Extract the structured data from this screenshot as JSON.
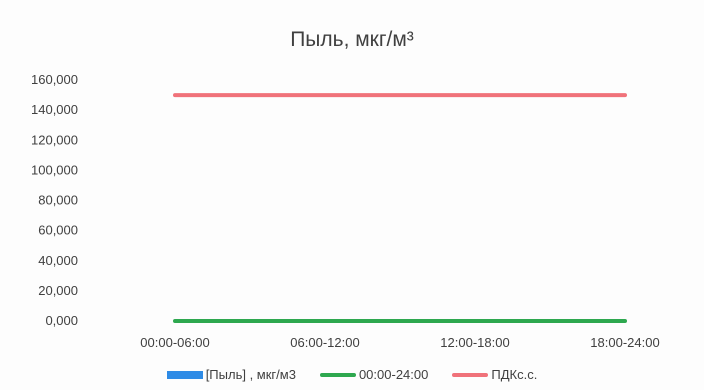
{
  "chart_data": {
    "type": "line",
    "title": "Пыль, мкг/м³",
    "categories": [
      "00:00-06:00",
      "06:00-12:00",
      "12:00-18:00",
      "18:00-24:00"
    ],
    "ylim": [
      0,
      160000
    ],
    "yticks": [
      0,
      20000,
      40000,
      60000,
      80000,
      100000,
      120000,
      140000,
      160000
    ],
    "ytick_labels": [
      "0,000",
      "20,000",
      "40,000",
      "60,000",
      "80,000",
      "100,000",
      "120,000",
      "140,000",
      "160,000"
    ],
    "series": [
      {
        "name": "[Пыль] , мкг/м3",
        "type": "bar",
        "color": "#2E8BE6",
        "values": [
          0,
          0,
          0,
          0
        ]
      },
      {
        "name": "00:00-24:00",
        "type": "line",
        "color": "#2EA84F",
        "values": [
          0,
          0,
          0,
          0
        ]
      },
      {
        "name": "ПДКс.с.",
        "type": "line",
        "color": "#F0727A",
        "values": [
          150000,
          150000,
          150000,
          150000
        ]
      }
    ],
    "grid": false,
    "legend": "bottom"
  }
}
